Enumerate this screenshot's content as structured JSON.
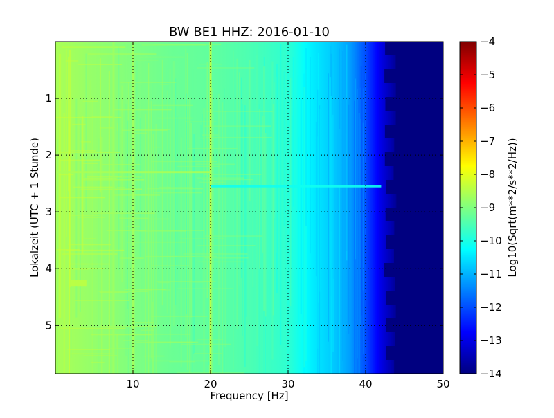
{
  "chart_data": {
    "type": "heatmap",
    "title": "BW BE1 HHZ: 2016-01-10",
    "xlabel": "Frequency [Hz]",
    "ylabel": "Lokalzeit (UTC + 1 Stunde)",
    "colorbar_label": "Log10(Sqrt(m**2/s**2/Hz))",
    "xlim": [
      0,
      50
    ],
    "ylim": [
      5.85,
      0
    ],
    "xticks": [
      10,
      20,
      30,
      40,
      50
    ],
    "yticks": [
      1,
      2,
      3,
      4,
      5
    ],
    "clim": [
      -14,
      -4
    ],
    "cticks": [
      -4,
      -5,
      -6,
      -7,
      -8,
      -9,
      -10,
      -11,
      -12,
      -13,
      -14
    ],
    "colormap": "jet",
    "grid": true,
    "vertical_features_hz": [
      {
        "freq": 20,
        "log_amplitude": -8.3
      },
      {
        "freq": 10,
        "log_amplitude": -8.6
      },
      {
        "freq": 7.5,
        "log_amplitude": -8.7
      },
      {
        "freq": 30,
        "log_amplitude": -9.9
      }
    ],
    "horizontal_features": [
      {
        "time": 2.55,
        "freq_range": [
          20,
          42
        ],
        "log_amplitude": -10.1
      },
      {
        "time": 2.3,
        "freq_range": [
          0,
          20
        ],
        "log_amplitude": -8.6
      },
      {
        "time": 4.25,
        "freq_range": [
          2,
          4
        ],
        "log_amplitude": -8.4
      }
    ],
    "spectrum_profile": [
      {
        "freq": 0.5,
        "log_amplitude": -8.6
      },
      {
        "freq": 5,
        "log_amplitude": -8.8
      },
      {
        "freq": 10,
        "log_amplitude": -9.0
      },
      {
        "freq": 15,
        "log_amplitude": -9.2
      },
      {
        "freq": 20,
        "log_amplitude": -9.3
      },
      {
        "freq": 25,
        "log_amplitude": -9.5
      },
      {
        "freq": 30,
        "log_amplitude": -9.8
      },
      {
        "freq": 33,
        "log_amplitude": -10.4
      },
      {
        "freq": 36,
        "log_amplitude": -10.8
      },
      {
        "freq": 38,
        "log_amplitude": -11.2
      },
      {
        "freq": 40,
        "log_amplitude": -12.0
      },
      {
        "freq": 42,
        "log_amplitude": -13.0
      },
      {
        "freq": 44,
        "log_amplitude": -13.8
      },
      {
        "freq": 50,
        "log_amplitude": -14.0
      }
    ]
  }
}
